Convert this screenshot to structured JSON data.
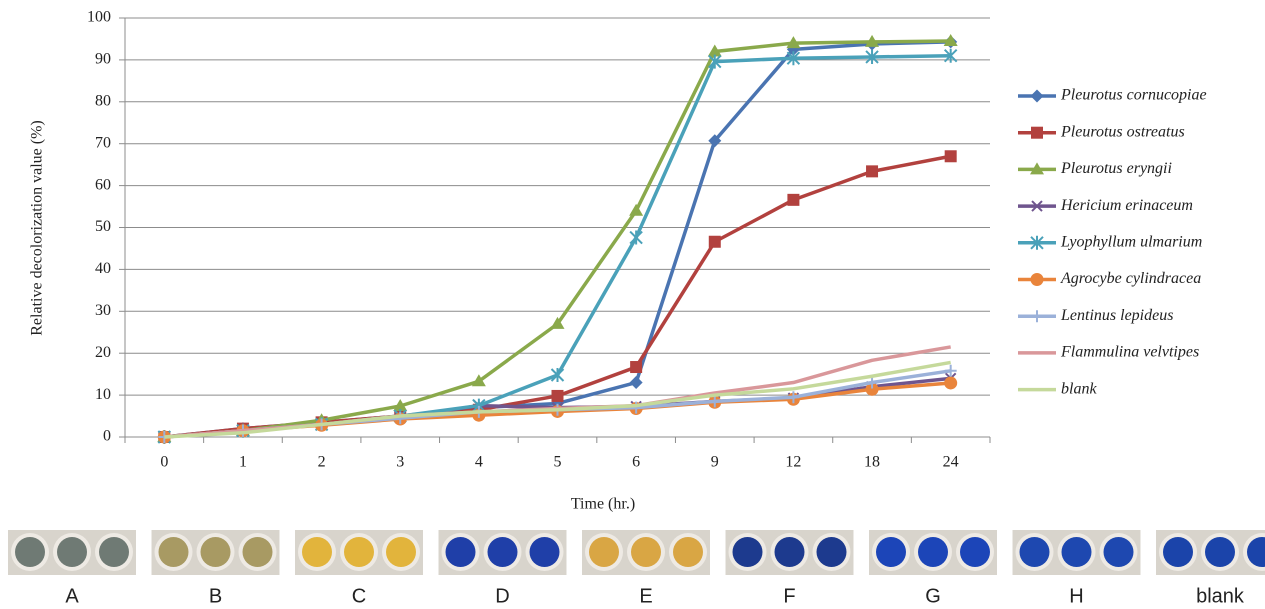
{
  "chart_data": {
    "type": "line",
    "y_label": "Relative decolorization value (%)",
    "x_label": "Time (hr.)",
    "categories": [
      "0",
      "1",
      "2",
      "3",
      "4",
      "5",
      "6",
      "9",
      "12",
      "18",
      "24"
    ],
    "ylim": [
      0,
      100
    ],
    "yticks": [
      0,
      10,
      20,
      30,
      40,
      50,
      60,
      70,
      80,
      90,
      100
    ],
    "grid": true,
    "legend": "right",
    "series": [
      {
        "name": "Pleurotus cornucopiae",
        "color": "#4a74b1",
        "marker": "diamond",
        "values": [
          0,
          2,
          3.5,
          5,
          7,
          8,
          13,
          70.7,
          92.5,
          93.8,
          94.3
        ]
      },
      {
        "name": "Pleurotus ostreatus",
        "color": "#b2413e",
        "marker": "square",
        "values": [
          0,
          2,
          3.5,
          5,
          6.5,
          9.8,
          16.7,
          46.6,
          56.6,
          63.4,
          67
        ]
      },
      {
        "name": "Pleurotus eryngii",
        "color": "#8aa94b",
        "marker": "triangle",
        "values": [
          0,
          1.5,
          4,
          7.4,
          13.3,
          27,
          54,
          92,
          94,
          94.3,
          94.5
        ]
      },
      {
        "name": "Hericium erinaceum",
        "color": "#6f558e",
        "marker": "x",
        "values": [
          0,
          1.5,
          3,
          4.5,
          7.5,
          7,
          7.3,
          8.5,
          9.3,
          12,
          14
        ]
      },
      {
        "name": "Lyophyllum ulmarium",
        "color": "#4aa1b9",
        "marker": "star",
        "values": [
          0,
          1.5,
          3,
          5,
          7.5,
          14.8,
          47.6,
          89.6,
          90.4,
          90.7,
          91
        ]
      },
      {
        "name": "Agrocybe cylindracea",
        "color": "#e9843b",
        "marker": "circle",
        "values": [
          0,
          1.5,
          2.8,
          4.3,
          5.2,
          6.1,
          6.8,
          8.3,
          9,
          11.4,
          12.9
        ]
      },
      {
        "name": "Lentinus lepideus",
        "color": "#9bb1d9",
        "marker": "plus",
        "values": [
          0,
          1.5,
          3,
          4.5,
          6,
          6.5,
          7,
          8.5,
          9.5,
          13,
          15.8
        ]
      },
      {
        "name": "Flammulina velvtipes",
        "color": "#d9979a",
        "marker": "none",
        "values": [
          0,
          1.5,
          3,
          5,
          6,
          6.8,
          7.5,
          10.5,
          13,
          18.3,
          21.5
        ]
      },
      {
        "name": "blank",
        "color": "#c5d99b",
        "marker": "none",
        "values": [
          0,
          1,
          3,
          5,
          6,
          6.5,
          7.5,
          10,
          11.5,
          14.5,
          17.8
        ]
      }
    ]
  },
  "panels": [
    {
      "label": "A",
      "color": "#6f7a74"
    },
    {
      "label": "B",
      "color": "#a89a63"
    },
    {
      "label": "C",
      "color": "#e2b43c"
    },
    {
      "label": "D",
      "color": "#1f3fa8"
    },
    {
      "label": "E",
      "color": "#d9a644"
    },
    {
      "label": "F",
      "color": "#1d3a8e"
    },
    {
      "label": "G",
      "color": "#1c45b8"
    },
    {
      "label": "H",
      "color": "#1e48b0"
    },
    {
      "label": "blank",
      "color": "#1b44aa"
    }
  ]
}
